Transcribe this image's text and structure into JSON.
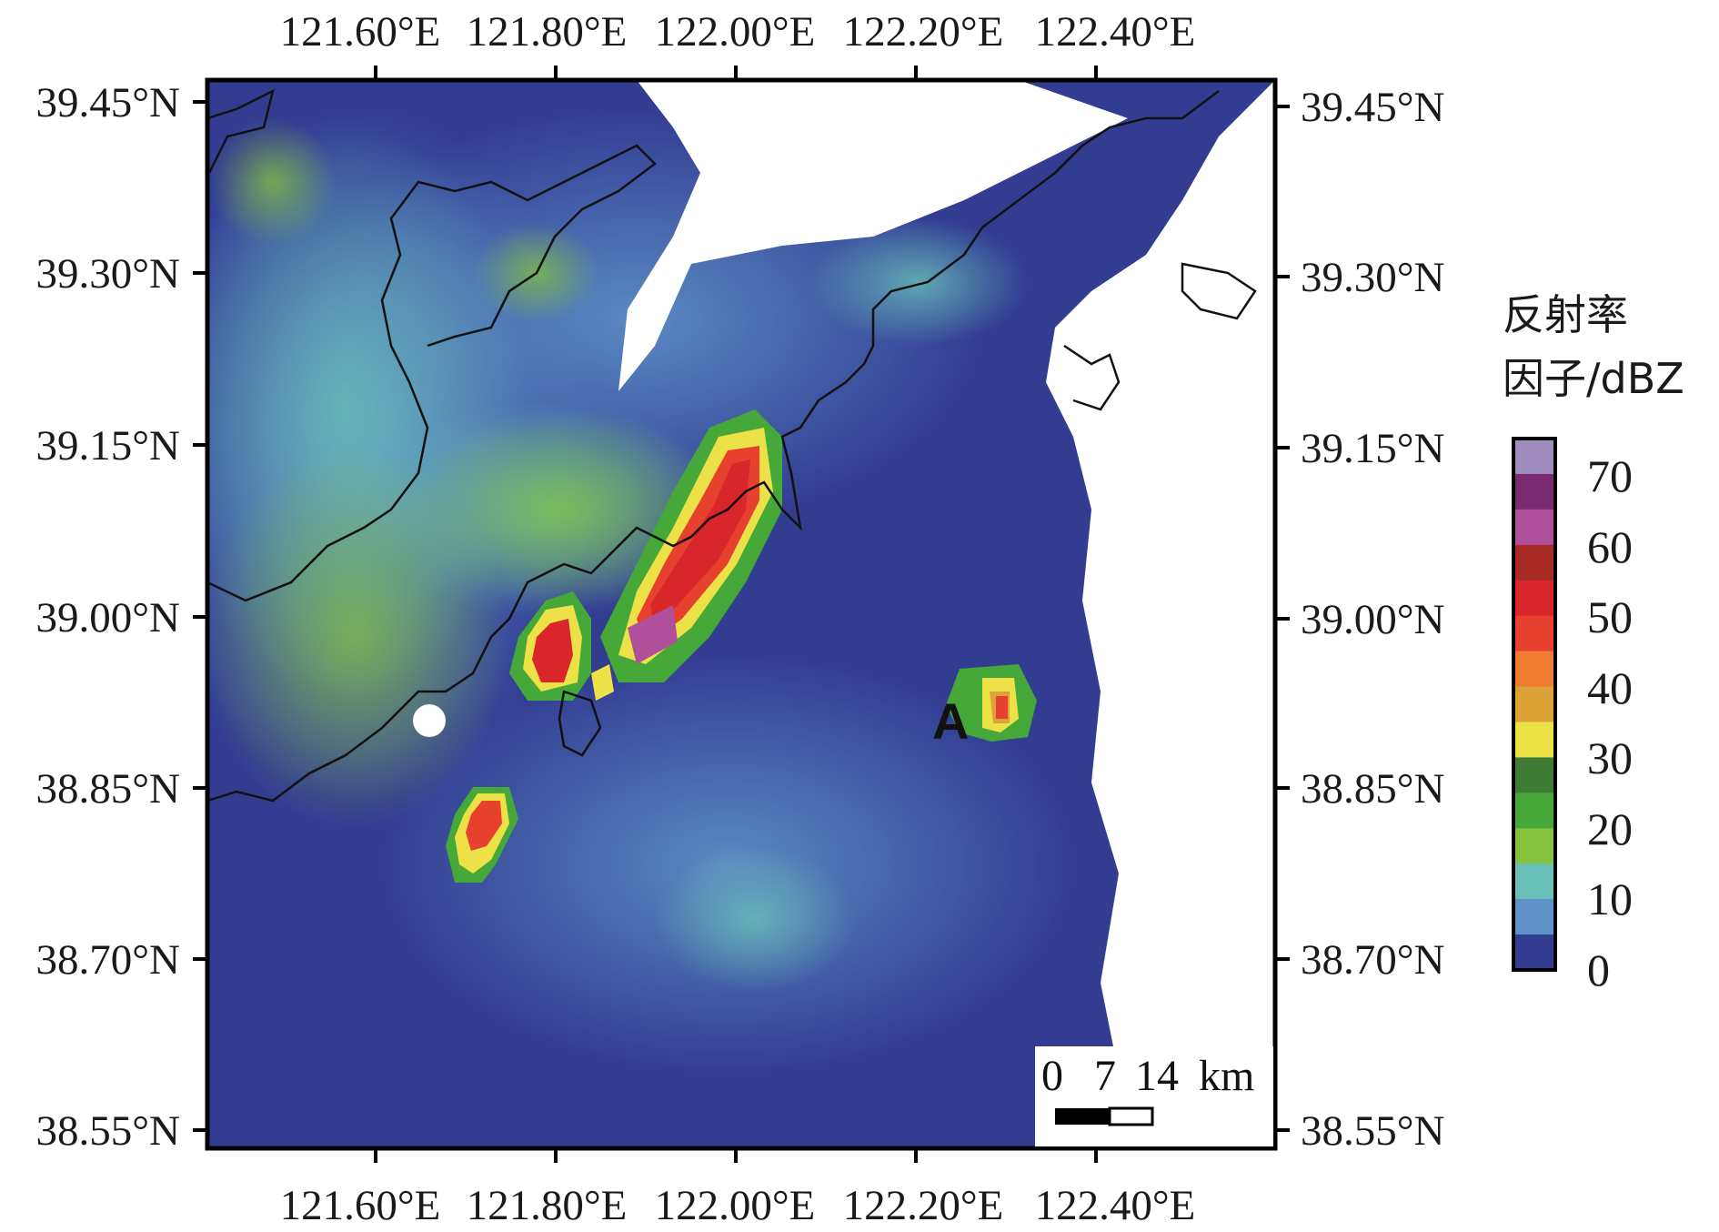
{
  "map": {
    "top_axis_labels": [
      "121.60°E",
      "121.80°E",
      "122.00°E",
      "122.20°E",
      "122.40°E"
    ],
    "bottom_axis_labels": [
      "121.60°E",
      "121.80°E",
      "122.00°E",
      "122.20°E",
      "122.40°E"
    ],
    "left_axis_labels": [
      "39.45°N",
      "39.30°N",
      "39.15°N",
      "39.00°N",
      "38.85°N",
      "38.70°N",
      "38.55°N"
    ],
    "right_axis_labels": [
      "39.45°N",
      "39.30°N",
      "39.15°N",
      "39.00°N",
      "38.85°N",
      "38.70°N",
      "38.55°N"
    ],
    "marker_label": "A",
    "scale_bar": {
      "labels": [
        "0",
        "7",
        "14"
      ],
      "unit": "km"
    }
  },
  "legend": {
    "title_line1": "反射率",
    "title_line2": "因子/dBZ",
    "values": [
      "70",
      "60",
      "50",
      "40",
      "30",
      "20",
      "10",
      "0"
    ],
    "colors": [
      "#9f8dbd",
      "#7a2a6e",
      "#b0509a",
      "#a82a26",
      "#d8262a",
      "#e8402e",
      "#f07c32",
      "#dca238",
      "#ece248",
      "#3f7b36",
      "#45a838",
      "#86c23e",
      "#69c0b8",
      "#5f92c8",
      "#323d92"
    ]
  },
  "colors": {
    "background_dbz0": "#323d92",
    "no_data": "#ffffff",
    "coastline": "#111111"
  }
}
